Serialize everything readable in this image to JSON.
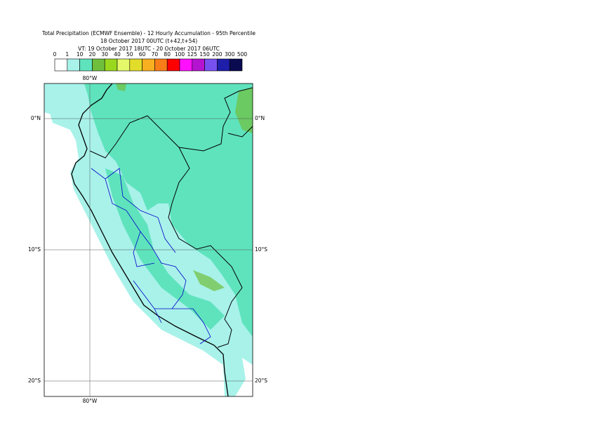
{
  "header": {
    "title": "Total Precipitation (ECMWF Ensemble) - 12 Hourly Accumulation - 95th Percentile",
    "line2": "18 October 2017 00UTC (t+42,t+54)",
    "line3": "VT: 19 October 2017 18UTC - 20 October 2017 06UTC"
  },
  "legend": {
    "labels": [
      0,
      1,
      10,
      20,
      30,
      40,
      50,
      60,
      70,
      80,
      100,
      125,
      150,
      200,
      300,
      500
    ],
    "colors": [
      "#ffffff",
      "#a8f2ea",
      "#5fe3bd",
      "#70bf3c",
      "#9ad81e",
      "#e4f86a",
      "#e2dc2a",
      "#f8b020",
      "#f87c18",
      "#ff0000",
      "#ff10ff",
      "#b414d0",
      "#7850f0",
      "#1e1eaa",
      "#0a0a50"
    ]
  },
  "map": {
    "lon_labels": [
      "80°W"
    ],
    "lat_labels": [
      "0°N",
      "10°S",
      "20°S"
    ]
  }
}
